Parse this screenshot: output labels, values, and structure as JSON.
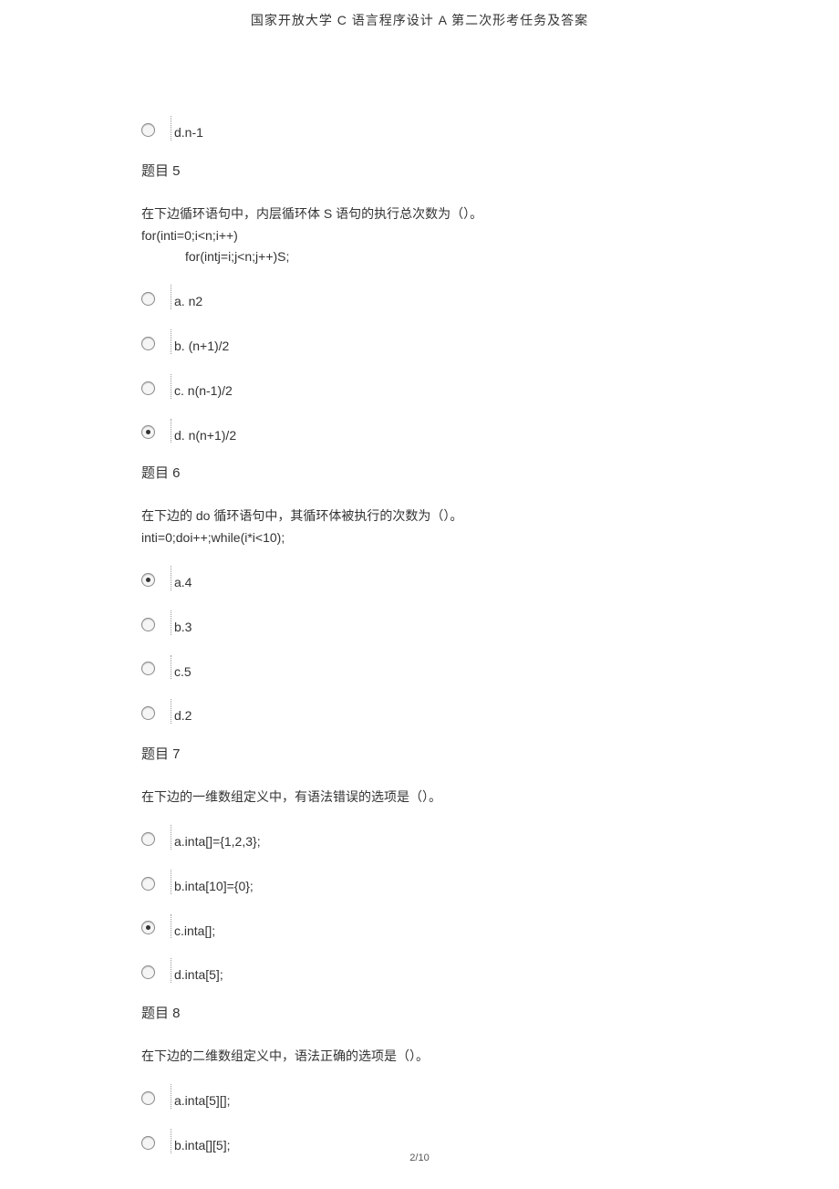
{
  "header": {
    "title": "国家开放大学 C 语言程序设计 A 第二次形考任务及答案"
  },
  "footer": {
    "page": "2/10"
  },
  "q4_tail": {
    "option_d": "d.n-1"
  },
  "q5": {
    "title": "题目 5",
    "stem_line1": "在下边循环语句中，内层循环体 S 语句的执行总次数为（）。",
    "stem_line2": "for(inti=0;i<n;i++)",
    "stem_line3": "for(intj=i;j<n;j++)S;",
    "options": {
      "a": "a. n2",
      "b": "b. (n+1)/2",
      "c": "c. n(n-1)/2",
      "d": "d. n(n+1)/2"
    },
    "selected": "d"
  },
  "q6": {
    "title": "题目 6",
    "stem_line1": "在下边的 do 循环语句中，其循环体被执行的次数为（）。",
    "stem_line2": "inti=0;doi++;while(i*i<10);",
    "options": {
      "a": "a.4",
      "b": "b.3",
      "c": "c.5",
      "d": "d.2"
    },
    "selected": "a"
  },
  "q7": {
    "title": "题目 7",
    "stem_line1": "在下边的一维数组定义中，有语法错误的选项是（）。",
    "options": {
      "a": "a.inta[]={1,2,3};",
      "b": "b.inta[10]={0};",
      "c": "c.inta[];",
      "d": "d.inta[5];"
    },
    "selected": "c"
  },
  "q8": {
    "title": "题目 8",
    "stem_line1": "在下边的二维数组定义中，语法正确的选项是（）。",
    "options": {
      "a": "a.inta[5][];",
      "b": "b.inta[][5];"
    },
    "selected": ""
  }
}
